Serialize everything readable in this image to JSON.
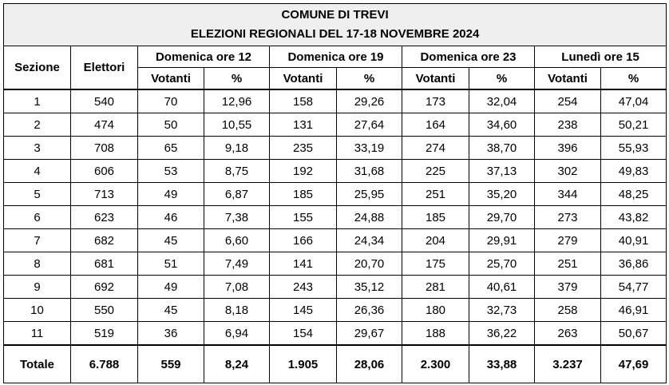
{
  "title_line1": "COMUNE DI TREVI",
  "title_line2": "ELEZIONI REGIONALI DEL 17-18 NOVEMBRE 2024",
  "headers": {
    "sezione": "Sezione",
    "elettori": "Elettori",
    "groups": [
      "Domenica ore 12",
      "Domenica ore 19",
      "Domenica ore 23",
      "Lunedì ore 15"
    ],
    "votanti": "Votanti",
    "percent": "%"
  },
  "rows": [
    [
      "1",
      "540",
      "70",
      "12,96",
      "158",
      "29,26",
      "173",
      "32,04",
      "254",
      "47,04"
    ],
    [
      "2",
      "474",
      "50",
      "10,55",
      "131",
      "27,64",
      "164",
      "34,60",
      "238",
      "50,21"
    ],
    [
      "3",
      "708",
      "65",
      "9,18",
      "235",
      "33,19",
      "274",
      "38,70",
      "396",
      "55,93"
    ],
    [
      "4",
      "606",
      "53",
      "8,75",
      "192",
      "31,68",
      "225",
      "37,13",
      "302",
      "49,83"
    ],
    [
      "5",
      "713",
      "49",
      "6,87",
      "185",
      "25,95",
      "251",
      "35,20",
      "344",
      "48,25"
    ],
    [
      "6",
      "623",
      "46",
      "7,38",
      "155",
      "24,88",
      "185",
      "29,70",
      "273",
      "43,82"
    ],
    [
      "7",
      "682",
      "45",
      "6,60",
      "166",
      "24,34",
      "204",
      "29,91",
      "279",
      "40,91"
    ],
    [
      "8",
      "681",
      "51",
      "7,49",
      "141",
      "20,70",
      "175",
      "25,70",
      "251",
      "36,86"
    ],
    [
      "9",
      "692",
      "49",
      "7,08",
      "243",
      "35,12",
      "281",
      "40,61",
      "379",
      "54,77"
    ],
    [
      "10",
      "550",
      "45",
      "8,18",
      "145",
      "26,36",
      "180",
      "32,73",
      "258",
      "46,91"
    ],
    [
      "11",
      "519",
      "36",
      "6,94",
      "154",
      "29,67",
      "188",
      "36,22",
      "263",
      "50,67"
    ]
  ],
  "total": [
    "Totale",
    "6.788",
    "559",
    "8,24",
    "1.905",
    "28,06",
    "2.300",
    "33,88",
    "3.237",
    "47,69"
  ]
}
